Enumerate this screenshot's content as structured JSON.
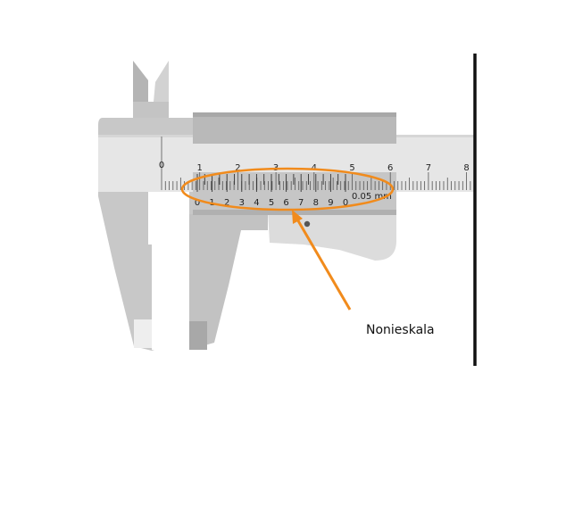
{
  "main_scale": {
    "labels": [
      "0",
      "1",
      "2",
      "3",
      "4",
      "5",
      "6",
      "7",
      "8"
    ]
  },
  "vernier_scale": {
    "labels": [
      "0",
      "1",
      "2",
      "3",
      "4",
      "5",
      "6",
      "7",
      "8",
      "9",
      "0"
    ],
    "resolution_label": "0.05 mm"
  },
  "callout": {
    "label": "Nonieskala"
  },
  "colors": {
    "caliper_body": "#c8c8c8",
    "beam": "#e6e6e6",
    "slider_bar": "#b9b9b9",
    "highlight_ellipse": "#f18b1c",
    "arrow": "#f18b1c",
    "wall": "#111111"
  }
}
